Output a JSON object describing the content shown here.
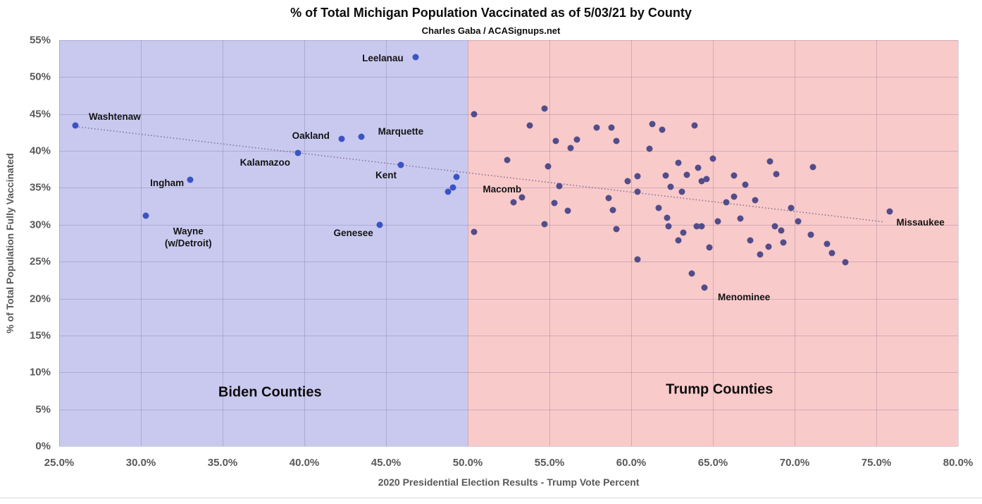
{
  "header": {
    "title": "% of Total Michigan Population Vaccinated as of 5/03/21 by County",
    "subtitle": "Charles Gaba / ACASignups.net"
  },
  "colors": {
    "biden_region_bg": "#c9c9f0",
    "trump_region_bg": "#f9caca",
    "biden_dot": "#3b53c4",
    "trump_dot": "#524d8a",
    "trend_line": "#857394",
    "grid_line": "rgba(90,85,120,0.25)",
    "axis_text": "#595959",
    "label_text": "#141414"
  },
  "chart_data": {
    "type": "scatter",
    "title": "% of Total Michigan Population Vaccinated as of 5/03/21 by County",
    "subtitle": "Charles Gaba / ACASignups.net",
    "xlabel": "2020 Presidential Election Results - Trump Vote Percent",
    "ylabel": "% of Total Population Fully Vaccinated",
    "xlim": [
      25,
      80
    ],
    "ylim": [
      0,
      55
    ],
    "grid": true,
    "x_tick_values": [
      25,
      30,
      35,
      40,
      45,
      50,
      55,
      60,
      65,
      70,
      75,
      80
    ],
    "x_tick_labels": [
      "25.0%",
      "30.0%",
      "35.0%",
      "40.0%",
      "45.0%",
      "50.0%",
      "55.0%",
      "60.0%",
      "65.0%",
      "70.0%",
      "75.0%",
      "80.0%"
    ],
    "y_tick_values": [
      0,
      5,
      10,
      15,
      20,
      25,
      30,
      35,
      40,
      45,
      50,
      55
    ],
    "y_tick_labels": [
      "0%",
      "5%",
      "10%",
      "15%",
      "20%",
      "25%",
      "30%",
      "35%",
      "40%",
      "45%",
      "50%",
      "55%"
    ],
    "regions": [
      {
        "id": "biden",
        "label": "Biden Counties",
        "x_start": 25,
        "x_end": 50,
        "label_x": 37.9,
        "label_y": 7.3
      },
      {
        "id": "trump",
        "label": "Trump Counties",
        "x_start": 50,
        "x_end": 80,
        "label_x": 65.4,
        "label_y": 7.6
      }
    ],
    "trend_line": {
      "x1": 26.0,
      "y1": 43.3,
      "x2": 75.4,
      "y2": 30.4,
      "style": "dotted"
    },
    "labeled_points": [
      {
        "name": "Washtenaw",
        "x": 26.0,
        "y": 43.4,
        "label_lines": [
          "Washtenaw"
        ],
        "label_x": 28.4,
        "label_y": 44.6
      },
      {
        "name": "Wayne (w/Detroit)",
        "x": 30.3,
        "y": 31.2,
        "label_lines": [
          "Wayne",
          "(w/Detroit)"
        ],
        "label_x": 32.9,
        "label_y": 28.3
      },
      {
        "name": "Ingham",
        "x": 33.0,
        "y": 36.1,
        "label_lines": [
          "Ingham"
        ],
        "label_x": 31.6,
        "label_y": 35.6
      },
      {
        "name": "Kalamazoo",
        "x": 39.6,
        "y": 39.7,
        "label_lines": [
          "Kalamazoo"
        ],
        "label_x": 37.6,
        "label_y": 38.4
      },
      {
        "name": "Oakland",
        "x": 42.3,
        "y": 41.6,
        "label_lines": [
          "Oakland"
        ],
        "label_x": 40.4,
        "label_y": 42.0
      },
      {
        "name": "Marquette",
        "x": 43.5,
        "y": 41.9,
        "label_lines": [
          "Marquette"
        ],
        "label_x": 45.9,
        "label_y": 42.6
      },
      {
        "name": "Genesee",
        "x": 44.6,
        "y": 30.0,
        "label_lines": [
          "Genesee"
        ],
        "label_x": 43.0,
        "label_y": 28.8
      },
      {
        "name": "Kent",
        "x": 45.9,
        "y": 38.1,
        "label_lines": [
          "Kent"
        ],
        "label_x": 45.0,
        "label_y": 36.7
      },
      {
        "name": "Leelanau",
        "x": 46.8,
        "y": 52.7,
        "label_lines": [
          "Leelanau"
        ],
        "label_x": 44.8,
        "label_y": 52.5
      },
      {
        "name": "Macomb",
        "x": 49.1,
        "y": 35.0,
        "label_lines": [
          "Macomb"
        ],
        "label_x": 52.1,
        "label_y": 34.8
      },
      {
        "name": "Menominee",
        "x": 64.5,
        "y": 21.5,
        "label_lines": [
          "Menominee"
        ],
        "label_x": 66.9,
        "label_y": 20.1
      },
      {
        "name": "Missaukee",
        "x": 75.8,
        "y": 31.8,
        "label_lines": [
          "Missaukee"
        ],
        "label_x": 77.7,
        "label_y": 30.3
      }
    ],
    "unlabeled_points": [
      [
        48.8,
        34.5
      ],
      [
        49.3,
        36.5
      ],
      [
        50.4,
        45.0
      ],
      [
        50.4,
        29.0
      ],
      [
        52.4,
        38.8
      ],
      [
        52.8,
        33.0
      ],
      [
        53.3,
        33.7
      ],
      [
        53.8,
        43.4
      ],
      [
        54.7,
        45.7
      ],
      [
        54.7,
        30.1
      ],
      [
        54.9,
        37.9
      ],
      [
        55.3,
        32.9
      ],
      [
        55.4,
        41.3
      ],
      [
        55.6,
        35.2
      ],
      [
        56.1,
        31.9
      ],
      [
        56.3,
        40.4
      ],
      [
        56.7,
        41.5
      ],
      [
        57.9,
        43.2
      ],
      [
        58.6,
        33.6
      ],
      [
        58.8,
        43.2
      ],
      [
        58.9,
        32.0
      ],
      [
        59.1,
        41.3
      ],
      [
        59.1,
        29.4
      ],
      [
        59.8,
        35.9
      ],
      [
        60.4,
        36.6
      ],
      [
        60.4,
        34.5
      ],
      [
        60.4,
        25.3
      ],
      [
        61.1,
        40.3
      ],
      [
        61.3,
        43.6
      ],
      [
        61.7,
        32.3
      ],
      [
        61.9,
        42.9
      ],
      [
        62.1,
        36.7
      ],
      [
        62.2,
        30.9
      ],
      [
        62.3,
        29.8
      ],
      [
        62.4,
        35.1
      ],
      [
        62.9,
        38.4
      ],
      [
        62.9,
        27.9
      ],
      [
        63.1,
        34.5
      ],
      [
        63.2,
        28.9
      ],
      [
        63.4,
        36.8
      ],
      [
        63.7,
        23.4
      ],
      [
        63.9,
        43.4
      ],
      [
        64.0,
        29.8
      ],
      [
        64.1,
        37.7
      ],
      [
        64.3,
        35.9
      ],
      [
        64.3,
        29.8
      ],
      [
        64.6,
        36.2
      ],
      [
        64.8,
        26.9
      ],
      [
        65.0,
        39.0
      ],
      [
        65.3,
        30.5
      ],
      [
        65.8,
        33.0
      ],
      [
        66.3,
        36.7
      ],
      [
        66.3,
        33.8
      ],
      [
        66.7,
        30.8
      ],
      [
        67.0,
        35.4
      ],
      [
        67.3,
        27.9
      ],
      [
        67.6,
        33.3
      ],
      [
        67.9,
        26.0
      ],
      [
        68.4,
        27.0
      ],
      [
        68.5,
        38.6
      ],
      [
        68.8,
        29.8
      ],
      [
        68.9,
        36.9
      ],
      [
        69.2,
        29.2
      ],
      [
        69.3,
        27.6
      ],
      [
        69.8,
        32.3
      ],
      [
        70.2,
        30.5
      ],
      [
        71.0,
        28.6
      ],
      [
        71.1,
        37.8
      ],
      [
        72.0,
        27.4
      ],
      [
        72.3,
        26.2
      ],
      [
        73.1,
        24.9
      ]
    ]
  }
}
